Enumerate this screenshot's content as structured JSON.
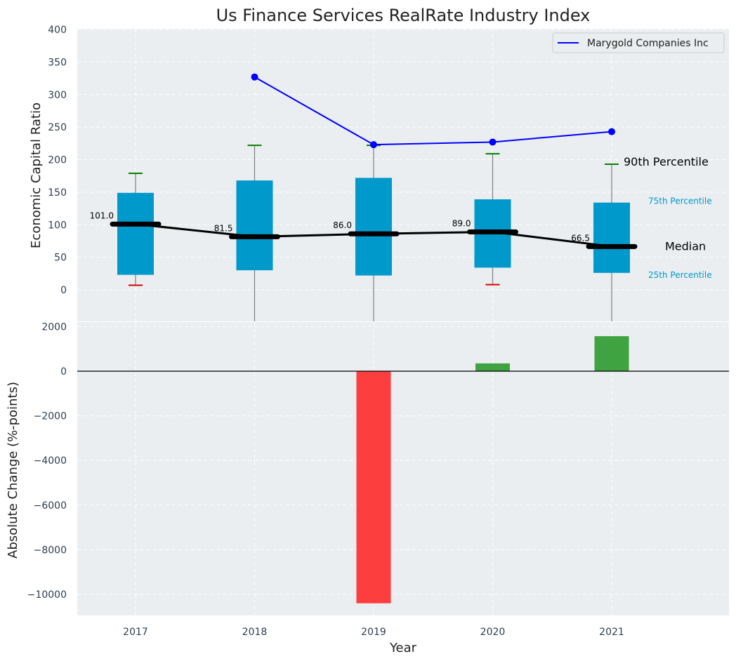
{
  "chart_data": {
    "type": "box+line+bar",
    "title": "Us Finance Services RealRate Industry Index",
    "xlabel": "Year",
    "categories": [
      "2017",
      "2018",
      "2019",
      "2020",
      "2021"
    ],
    "top": {
      "ylabel": "Economic Capital Ratio",
      "ylim": [
        -48,
        400
      ],
      "yticks": [
        0,
        50,
        100,
        150,
        200,
        250,
        300,
        350,
        400
      ],
      "boxes": [
        {
          "year": "2017",
          "p25": 23,
          "p75": 149,
          "median": 101.0,
          "p90": 179,
          "p10": 7,
          "median_label": "101.0"
        },
        {
          "year": "2018",
          "p25": 30,
          "p75": 168,
          "median": 81.5,
          "p90": 222,
          "p10": -60,
          "median_label": "81.5"
        },
        {
          "year": "2019",
          "p25": 22,
          "p75": 172,
          "median": 86.0,
          "p90": 222,
          "p10": -60,
          "median_label": "86.0"
        },
        {
          "year": "2020",
          "p25": 34,
          "p75": 139,
          "median": 89.0,
          "p90": 209,
          "p10": 8,
          "median_label": "89.0"
        },
        {
          "year": "2021",
          "p25": 26,
          "p75": 134,
          "median": 66.5,
          "p90": 193,
          "p10": -60,
          "median_label": "66.5"
        }
      ],
      "company_series": {
        "name": "Marygold Companies Inc",
        "years": [
          "2018",
          "2019",
          "2020",
          "2021"
        ],
        "values": [
          327,
          223,
          227,
          243
        ]
      },
      "annotations": {
        "p90": "90th Percentile",
        "p75": "75th Percentile",
        "median": "Median",
        "p25": "25th Percentile"
      }
    },
    "bottom": {
      "ylabel": "Absolute Change (%-points)",
      "ylim": [
        -11000,
        2000
      ],
      "yticks": [
        2000,
        0,
        -2000,
        -4000,
        -6000,
        -8000,
        -10000
      ],
      "ytick_labels": [
        "2000",
        "0",
        "−2000",
        "−4000",
        "−6000",
        "−8000",
        "−10000"
      ],
      "values": [
        null,
        null,
        -10400,
        350,
        1570
      ]
    },
    "colors": {
      "box": "#0099cc",
      "median_line": "#000000",
      "company_line": "#0000ff",
      "whisker_high": "#008000",
      "whisker_low": "#dd0000",
      "bar_pos": "#2e9a2e",
      "bar_neg": "#ff2a2a",
      "panel_bg": "#eaeef0"
    }
  }
}
